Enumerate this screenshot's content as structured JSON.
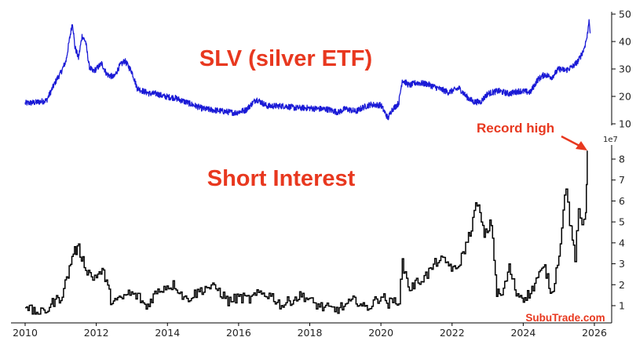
{
  "chart_data": [
    {
      "type": "line",
      "title": "SLV (silver ETF)",
      "color": "#1a1ad6",
      "y_axis_side": "right",
      "ylim": [
        10,
        50
      ],
      "yticks": [
        "10",
        "20",
        "30",
        "40",
        "50"
      ],
      "xlim": [
        2010,
        2026
      ],
      "series": [
        {
          "x": [
            2010.0,
            2010.3,
            2010.6,
            2010.9,
            2011.0,
            2011.15,
            2011.25,
            2011.33,
            2011.4,
            2011.5,
            2011.6,
            2011.7,
            2011.8,
            2011.9,
            2012.0,
            2012.15,
            2012.3,
            2012.5,
            2012.65,
            2012.8,
            2012.9,
            2013.0,
            2013.15,
            2013.3,
            2013.5,
            2013.7,
            2013.9,
            2014.2,
            2014.5,
            2014.8,
            2015.0,
            2015.3,
            2015.6,
            2015.9,
            2016.2,
            2016.5,
            2016.8,
            2017.0,
            2017.3,
            2017.6,
            2017.9,
            2018.2,
            2018.5,
            2018.8,
            2019.0,
            2019.3,
            2019.5,
            2019.7,
            2020.0,
            2020.2,
            2020.3,
            2020.5,
            2020.6,
            2020.8,
            2021.0,
            2021.3,
            2021.6,
            2021.9,
            2022.2,
            2022.4,
            2022.6,
            2022.8,
            2023.0,
            2023.3,
            2023.6,
            2023.9,
            2024.2,
            2024.4,
            2024.6,
            2024.8,
            2025.0,
            2025.2,
            2025.4,
            2025.55,
            2025.7,
            2025.8,
            2025.85
          ],
          "y": [
            17.5,
            17.8,
            18.5,
            26.5,
            28.5,
            33,
            41,
            47,
            38,
            34,
            42,
            40,
            31,
            29,
            30,
            32,
            28,
            27,
            31,
            33,
            31,
            29,
            23,
            22,
            21,
            21,
            20,
            19.5,
            18,
            16.5,
            15.5,
            15,
            14.5,
            14,
            15,
            19,
            16.5,
            16.5,
            16.5,
            15.8,
            15.8,
            15.5,
            15.3,
            14.2,
            15.5,
            14.5,
            16,
            17,
            16.8,
            12,
            15,
            17.5,
            26,
            24,
            25,
            24.5,
            23,
            21.5,
            23,
            20,
            18,
            18,
            21,
            22,
            21,
            22,
            21.5,
            26,
            28,
            27,
            30,
            29.5,
            31,
            33,
            37,
            42,
            48
          ]
        }
      ]
    },
    {
      "type": "line",
      "title": "Short Interest",
      "color": "#000000",
      "y_axis_side": "right",
      "y_scale_label": "1e7",
      "ylim": [
        0.5,
        8.5
      ],
      "yticks": [
        "1",
        "2",
        "3",
        "4",
        "5",
        "6",
        "7",
        "8"
      ],
      "xlim": [
        2010,
        2026
      ],
      "xticks": [
        "2010",
        "2012",
        "2014",
        "2016",
        "2018",
        "2020",
        "2022",
        "2024",
        "2026"
      ],
      "annotation": "Record high",
      "series": [
        {
          "x": [
            2010.0,
            2010.2,
            2010.4,
            2010.6,
            2010.8,
            2011.0,
            2011.2,
            2011.35,
            2011.5,
            2011.7,
            2011.9,
            2012.0,
            2012.2,
            2012.4,
            2012.6,
            2012.9,
            2013.2,
            2013.4,
            2013.6,
            2013.9,
            2014.2,
            2014.5,
            2014.8,
            2015.1,
            2015.4,
            2015.7,
            2016.0,
            2016.3,
            2016.6,
            2016.9,
            2017.2,
            2017.5,
            2017.8,
            2018.1,
            2018.4,
            2018.7,
            2019.0,
            2019.3,
            2019.5,
            2019.7,
            2020.0,
            2020.2,
            2020.5,
            2020.6,
            2020.8,
            2021.0,
            2021.3,
            2021.6,
            2021.9,
            2022.1,
            2022.3,
            2022.5,
            2022.7,
            2022.9,
            2023.1,
            2023.25,
            2023.4,
            2023.6,
            2023.8,
            2024.0,
            2024.2,
            2024.4,
            2024.6,
            2024.8,
            2025.0,
            2025.2,
            2025.3,
            2025.45,
            2025.55,
            2025.65,
            2025.75,
            2025.8
          ],
          "y": [
            1.1,
            0.7,
            0.6,
            0.8,
            1.2,
            1.4,
            2.5,
            3.6,
            3.7,
            2.8,
            2.3,
            2.5,
            2.6,
            1.3,
            1.2,
            1.6,
            1.4,
            0.9,
            1.5,
            1.9,
            2.0,
            1.3,
            1.6,
            1.9,
            1.8,
            1.2,
            1.4,
            1.3,
            1.6,
            1.5,
            1.0,
            1.3,
            1.5,
            1.1,
            0.9,
            0.8,
            1.0,
            1.3,
            0.9,
            1.0,
            1.5,
            1.1,
            1.3,
            3.0,
            1.8,
            2.1,
            2.5,
            3.2,
            3.0,
            2.6,
            3.5,
            4.5,
            6.0,
            4.3,
            5.0,
            1.6,
            1.5,
            2.8,
            1.6,
            1.4,
            1.6,
            2.4,
            2.8,
            1.5,
            3.5,
            6.8,
            5.0,
            3.3,
            5.4,
            4.8,
            5.5,
            8.4
          ]
        }
      ]
    }
  ],
  "watermark": "SubuTrade.com"
}
